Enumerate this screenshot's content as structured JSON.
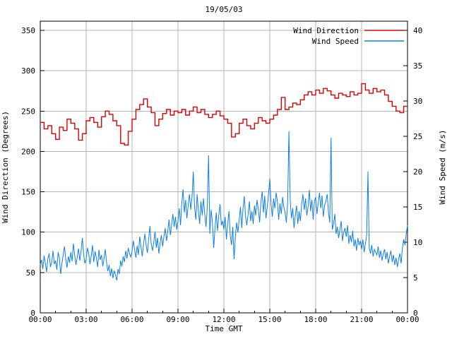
{
  "title": "19/05/03",
  "colors": {
    "wind_direction": "#e00000",
    "wind_speed": "#0d7ee8",
    "grid": "#b5b5b5",
    "border": "#000000",
    "text": "#000000",
    "background": "#ffffff"
  },
  "legend": {
    "position": "top-right-inside",
    "entries": [
      {
        "label": "Wind Direction",
        "series": "wind_direction"
      },
      {
        "label": "Wind Speed",
        "series": "wind_speed"
      }
    ]
  },
  "chart_data": {
    "type": "line",
    "title": "19/05/03",
    "x_axis": {
      "label": "Time GMT",
      "range_hours": [
        0,
        24
      ],
      "major_tick_hours": [
        0,
        3,
        6,
        9,
        12,
        15,
        18,
        21,
        24
      ],
      "major_tick_labels": [
        "00:00",
        "03:00",
        "06:00",
        "09:00",
        "12:00",
        "15:00",
        "18:00",
        "21:00",
        "00:00"
      ],
      "minor_tick_interval_hours": 1,
      "grid": true
    },
    "y_left": {
      "label": "Wind Direction (Degrees)",
      "range": [
        0,
        350
      ],
      "ticks": [
        0,
        50,
        100,
        150,
        200,
        250,
        300,
        350
      ],
      "grid": true
    },
    "y_right": {
      "label": "Wind Speed (m/s)",
      "range": [
        0,
        40
      ],
      "ticks": [
        0,
        5,
        10,
        15,
        20,
        25,
        30,
        35,
        40
      ],
      "grid": false
    },
    "series": [
      {
        "name": "Wind Direction",
        "axis": "left",
        "style": "step",
        "color_key": "wind_direction",
        "interval_minutes": 15,
        "values": [
          236,
          228,
          232,
          222,
          215,
          230,
          226,
          240,
          235,
          228,
          214,
          222,
          238,
          242,
          236,
          230,
          243,
          250,
          246,
          238,
          232,
          210,
          208,
          225,
          240,
          252,
          258,
          265,
          255,
          248,
          232,
          240,
          247,
          252,
          245,
          250,
          248,
          252,
          245,
          250,
          255,
          248,
          252,
          246,
          242,
          246,
          250,
          244,
          240,
          235,
          218,
          222,
          235,
          240,
          232,
          228,
          235,
          242,
          238,
          235,
          240,
          245,
          252,
          267,
          252,
          255,
          260,
          258,
          264,
          270,
          274,
          270,
          276,
          272,
          278,
          275,
          270,
          266,
          272,
          270,
          268,
          274,
          270,
          272,
          284,
          276,
          272,
          278,
          274,
          276,
          270,
          262,
          256,
          250,
          248,
          256,
          256
        ]
      },
      {
        "name": "Wind Speed",
        "axis": "right",
        "style": "line",
        "color_key": "wind_speed",
        "interval_minutes": 5,
        "values": [
          6.8,
          7.5,
          6.2,
          8.1,
          7.0,
          5.8,
          7.7,
          8.4,
          6.5,
          7.2,
          8.8,
          6.9,
          7.4,
          6.1,
          8.6,
          7.8,
          5.5,
          7.0,
          8.2,
          9.4,
          7.6,
          6.4,
          8.0,
          7.1,
          8.6,
          7.3,
          9.8,
          8.1,
          6.8,
          7.9,
          9.1,
          7.4,
          8.8,
          10.6,
          8.3,
          7.0,
          7.6,
          9.2,
          8.4,
          6.9,
          8.1,
          9.6,
          7.2,
          8.7,
          7.8,
          6.5,
          8.9,
          7.5,
          8.2,
          6.6,
          7.7,
          9.0,
          7.1,
          5.9,
          6.8,
          5.2,
          6.3,
          4.9,
          6.0,
          5.4,
          4.6,
          6.2,
          5.5,
          7.4,
          6.6,
          8.0,
          7.2,
          8.8,
          7.7,
          9.2,
          8.4,
          7.9,
          8.8,
          10.2,
          9.0,
          7.8,
          9.5,
          8.2,
          10.8,
          9.4,
          8.0,
          9.8,
          11.2,
          9.6,
          8.5,
          10.4,
          12.3,
          9.8,
          8.8,
          10.0,
          11.5,
          9.2,
          10.6,
          8.4,
          9.9,
          11.0,
          9.4,
          10.8,
          12.0,
          10.2,
          11.6,
          13.2,
          11.0,
          12.5,
          14.0,
          12.2,
          13.6,
          11.8,
          13.0,
          14.8,
          12.4,
          15.5,
          17.5,
          14.2,
          16.0,
          13.4,
          15.2,
          16.8,
          14.6,
          16.4,
          20.0,
          15.0,
          13.2,
          16.8,
          14.4,
          12.6,
          15.8,
          13.8,
          16.2,
          14.0,
          12.2,
          14.9,
          22.3,
          11.2,
          14.6,
          12.8,
          9.2,
          12.0,
          14.2,
          11.6,
          13.8,
          15.4,
          12.4,
          13.0,
          11.8,
          13.6,
          10.4,
          12.6,
          14.4,
          11.0,
          9.6,
          12.2,
          7.6,
          10.8,
          12.8,
          11.4,
          13.2,
          15.0,
          12.0,
          14.8,
          16.5,
          13.6,
          12.4,
          14.0,
          15.8,
          13.0,
          14.4,
          12.6,
          15.2,
          13.8,
          16.0,
          14.6,
          12.8,
          15.6,
          17.2,
          14.2,
          16.6,
          13.4,
          15.0,
          16.8,
          19.0,
          15.4,
          13.6,
          16.2,
          14.8,
          17.0,
          15.8,
          13.2,
          15.5,
          14.0,
          16.4,
          15.0,
          14.2,
          12.8,
          15.6,
          25.7,
          16.0,
          13.4,
          14.8,
          12.0,
          13.8,
          15.2,
          12.6,
          14.4,
          13.0,
          15.4,
          16.8,
          14.6,
          16.2,
          13.8,
          15.0,
          17.4,
          14.4,
          16.0,
          13.2,
          15.8,
          16.4,
          14.0,
          15.6,
          17.0,
          14.8,
          16.6,
          13.6,
          15.2,
          15.8,
          16.8,
          14.2,
          12.8,
          24.8,
          11.8,
          12.6,
          14.0,
          11.2,
          12.2,
          10.6,
          11.8,
          13.0,
          10.2,
          11.4,
          12.0,
          10.8,
          12.4,
          9.8,
          11.0,
          10.0,
          11.6,
          9.4,
          10.4,
          8.8,
          10.6,
          9.6,
          10.2,
          9.0,
          10.4,
          8.6,
          9.8,
          11.0,
          20.0,
          9.2,
          8.4,
          9.6,
          8.0,
          9.0,
          8.6,
          8.2,
          9.4,
          7.8,
          8.8,
          7.4,
          8.4,
          9.0,
          7.6,
          8.6,
          7.0,
          8.0,
          8.8,
          7.2,
          8.2,
          6.8,
          7.8,
          6.5,
          7.6,
          8.4,
          7.0,
          9.2,
          10.4,
          9.6,
          11.2,
          12.4
        ]
      }
    ]
  }
}
